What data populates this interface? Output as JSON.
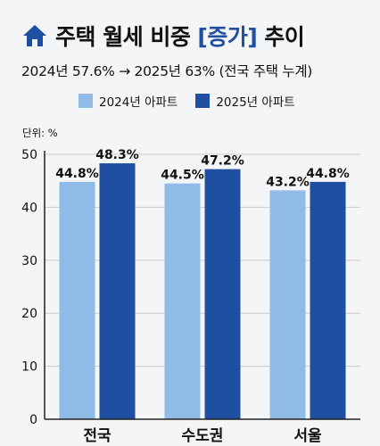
{
  "header": {
    "title_main": "주택 월세 비중",
    "title_highlight": "[증가]",
    "title_end": "추이",
    "subtitle": "2024년 57.6% → 2025년 63% (전국 주택 누계)"
  },
  "colors": {
    "series_2024": "#8fbbe6",
    "series_2025": "#1f4fa0",
    "accent": "#1f4fa0",
    "axis": "#222222",
    "grid": "#c9ccd2"
  },
  "icons": {
    "title_icon": "house-icon"
  },
  "chart_data": {
    "type": "bar",
    "unit_label": "단위: %",
    "categories": [
      "전국",
      "수도권",
      "서울"
    ],
    "series": [
      {
        "name": "2024년 아파트",
        "values": [
          44.8,
          44.5,
          43.2
        ],
        "labels": [
          "44.8%",
          "44.5%",
          "43.2%"
        ]
      },
      {
        "name": "2025년 아파트",
        "values": [
          48.3,
          47.2,
          44.8
        ],
        "labels": [
          "48.3%",
          "47.2%",
          "44.8%"
        ]
      }
    ],
    "yticks": [
      0,
      10,
      20,
      30,
      40,
      50
    ],
    "ylim": [
      0,
      50
    ],
    "grid": true,
    "legend": "top"
  }
}
